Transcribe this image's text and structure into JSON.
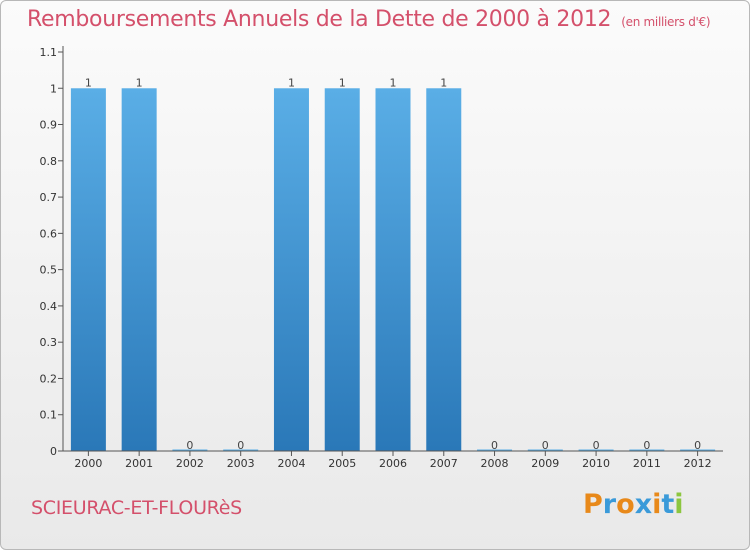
{
  "header": {
    "title": "Remboursements Annuels de la Dette de 2000 à 2012",
    "unit": "(en milliers d'€)"
  },
  "footer": {
    "commune": "SCIEURAC-ET-FLOURèS",
    "logo_letters": [
      "P",
      "r",
      "o",
      "x",
      "i",
      "t",
      "i"
    ],
    "logo_colors": [
      "#e8891a",
      "#3a9ad9",
      "#e8891a",
      "#3a9ad9",
      "#e8891a",
      "#3a9ad9",
      "#8cc63f"
    ]
  },
  "chart_data": {
    "type": "bar",
    "title": "Remboursements Annuels de la Dette de 2000 à 2012",
    "categories": [
      "2000",
      "2001",
      "2002",
      "2003",
      "2004",
      "2005",
      "2006",
      "2007",
      "2008",
      "2009",
      "2010",
      "2011",
      "2012"
    ],
    "values": [
      1,
      1,
      0,
      0,
      1,
      1,
      1,
      1,
      0,
      0,
      0,
      0,
      0
    ],
    "value_labels": [
      "1",
      "1",
      "0",
      "0",
      "1",
      "1",
      "1",
      "1",
      "0",
      "0",
      "0",
      "0",
      "0"
    ],
    "yticks": [
      "0",
      "0.1",
      "0.2",
      "0.3",
      "0.4",
      "0.5",
      "0.6",
      "0.7",
      "0.8",
      "0.9",
      "1",
      "1.1"
    ],
    "ylim": [
      0,
      1.1
    ],
    "grid": false,
    "colors": {
      "bar_top": "#5aaee6",
      "bar_bottom": "#2a78b8",
      "text": "#333333",
      "axis": "#555555"
    }
  }
}
